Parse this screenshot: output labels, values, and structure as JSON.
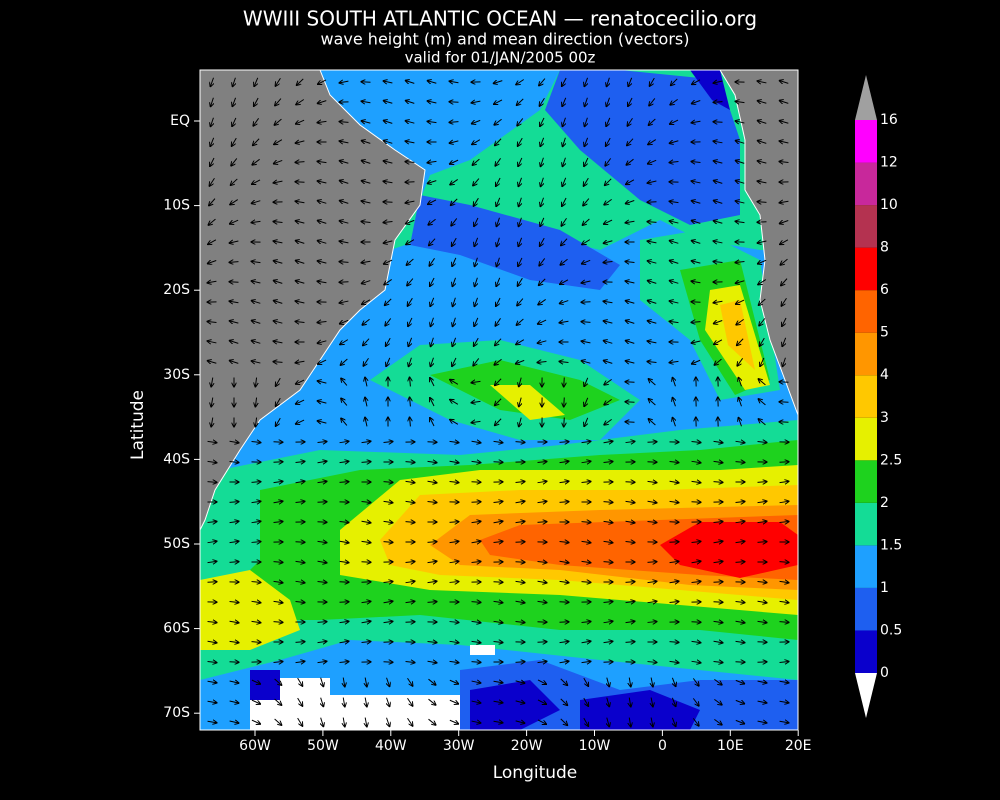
{
  "title": "WWIII SOUTH ATLANTIC OCEAN — renatocecilio.org",
  "subtitle": "wave height (m) and mean direction (vectors)",
  "valid": "valid for 01/JAN/2005 00z",
  "x_label": "Longitude",
  "y_label": "Latitude",
  "x_ticks": [
    "60W",
    "50W",
    "40W",
    "30W",
    "20W",
    "10W",
    "0",
    "10E",
    "20E"
  ],
  "y_ticks": [
    "EQ",
    "10S",
    "20S",
    "30S",
    "40S",
    "50S",
    "60S",
    "70S"
  ],
  "colorbar": {
    "levels": [
      "0",
      "0.5",
      "1",
      "1.5",
      "2",
      "2.5",
      "3",
      "4",
      "5",
      "6",
      "8",
      "10",
      "12",
      "16"
    ],
    "colors": [
      "#0a00cc",
      "#1e5ff0",
      "#1ea0ff",
      "#14dc96",
      "#1ed21e",
      "#e6f000",
      "#ffc800",
      "#ff9600",
      "#ff6400",
      "#ff0000",
      "#b43250",
      "#c8289b",
      "#ff00ff"
    ]
  }
}
